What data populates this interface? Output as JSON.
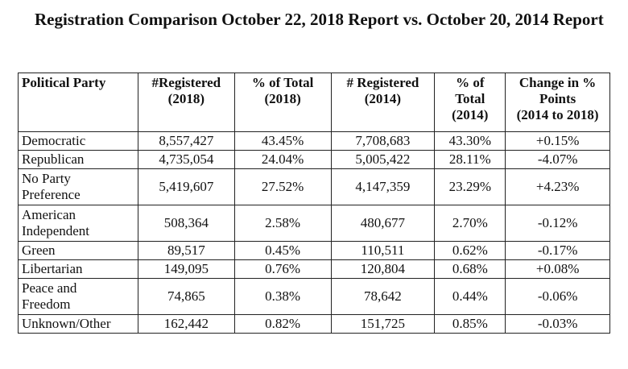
{
  "title": "Registration Comparison October 22, 2018 Report vs. October 20, 2014 Report",
  "table": {
    "headers": [
      "Political Party",
      "#Registered\n(2018)",
      "% of Total\n(2018)",
      "# Registered\n(2014)",
      "% of\nTotal\n(2014)",
      "Change in %\nPoints\n(2014 to 2018)"
    ],
    "rows": [
      [
        "Democratic",
        "8,557,427",
        "43.45%",
        "7,708,683",
        "43.30%",
        "+0.15%"
      ],
      [
        "Republican",
        "4,735,054",
        "24.04%",
        "5,005,422",
        "28.11%",
        "-4.07%"
      ],
      [
        "No Party\nPreference",
        "5,419,607",
        "27.52%",
        "4,147,359",
        "23.29%",
        "+4.23%"
      ],
      [
        "American\nIndependent",
        "508,364",
        "2.58%",
        "480,677",
        "2.70%",
        "-0.12%"
      ],
      [
        "Green",
        "89,517",
        "0.45%",
        "110,511",
        "0.62%",
        "-0.17%"
      ],
      [
        "Libertarian",
        "149,095",
        "0.76%",
        "120,804",
        "0.68%",
        "+0.08%"
      ],
      [
        "Peace and\nFreedom",
        "74,865",
        "0.38%",
        "78,642",
        "0.44%",
        "-0.06%"
      ],
      [
        "Unknown/Other",
        "162,442",
        "0.82%",
        "151,725",
        "0.85%",
        "-0.03%"
      ]
    ]
  }
}
